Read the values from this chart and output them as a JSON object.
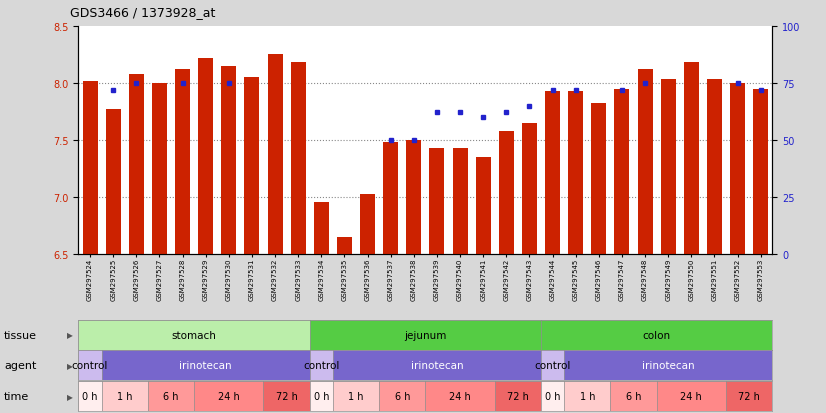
{
  "title": "GDS3466 / 1373928_at",
  "samples": [
    "GSM297524",
    "GSM297525",
    "GSM297526",
    "GSM297527",
    "GSM297528",
    "GSM297529",
    "GSM297530",
    "GSM297531",
    "GSM297532",
    "GSM297533",
    "GSM297534",
    "GSM297535",
    "GSM297536",
    "GSM297537",
    "GSM297538",
    "GSM297539",
    "GSM297540",
    "GSM297541",
    "GSM297542",
    "GSM297543",
    "GSM297544",
    "GSM297545",
    "GSM297546",
    "GSM297547",
    "GSM297548",
    "GSM297549",
    "GSM297550",
    "GSM297551",
    "GSM297552",
    "GSM297553"
  ],
  "bar_values": [
    8.02,
    7.77,
    8.08,
    8.0,
    8.12,
    8.22,
    8.15,
    8.05,
    8.25,
    8.18,
    6.95,
    6.65,
    7.02,
    7.48,
    7.5,
    7.43,
    7.43,
    7.35,
    7.58,
    7.65,
    7.93,
    7.93,
    7.82,
    7.95,
    8.12,
    8.03,
    8.18,
    8.03,
    8.0,
    7.95
  ],
  "percentile_values": [
    null,
    72,
    75,
    null,
    75,
    null,
    75,
    null,
    null,
    null,
    null,
    null,
    null,
    50,
    50,
    62,
    62,
    60,
    62,
    65,
    72,
    72,
    null,
    72,
    75,
    null,
    null,
    null,
    75,
    72
  ],
  "ylim_left": [
    6.5,
    8.5
  ],
  "ylim_right": [
    0,
    100
  ],
  "yticks_left": [
    6.5,
    7.0,
    7.5,
    8.0,
    8.5
  ],
  "yticks_right": [
    0,
    25,
    50,
    75,
    100
  ],
  "bar_color": "#cc2200",
  "dot_color": "#2222cc",
  "background_color": "#d8d8d8",
  "plot_bg_color": "#ffffff",
  "tissue_defs": [
    {
      "start": 0,
      "end": 10,
      "color": "#bbeeaa",
      "label": "stomach"
    },
    {
      "start": 10,
      "end": 20,
      "color": "#55cc44",
      "label": "jejunum"
    },
    {
      "start": 20,
      "end": 30,
      "color": "#55cc44",
      "label": "colon"
    }
  ],
  "agent_defs": [
    {
      "start": 0,
      "end": 1,
      "color": "#ccbbee",
      "label": "control"
    },
    {
      "start": 1,
      "end": 10,
      "color": "#7766cc",
      "label": "irinotecan"
    },
    {
      "start": 10,
      "end": 11,
      "color": "#ccbbee",
      "label": "control"
    },
    {
      "start": 11,
      "end": 20,
      "color": "#7766cc",
      "label": "irinotecan"
    },
    {
      "start": 20,
      "end": 21,
      "color": "#ccbbee",
      "label": "control"
    },
    {
      "start": 21,
      "end": 30,
      "color": "#7766cc",
      "label": "irinotecan"
    }
  ],
  "time_pattern": [
    {
      "start": 0,
      "end": 1,
      "color": "#ffeeee",
      "label": "0 h"
    },
    {
      "start": 1,
      "end": 3,
      "color": "#ffcccc",
      "label": "1 h"
    },
    {
      "start": 3,
      "end": 5,
      "color": "#ff9999",
      "label": "6 h"
    },
    {
      "start": 5,
      "end": 8,
      "color": "#ff8888",
      "label": "24 h"
    },
    {
      "start": 8,
      "end": 10,
      "color": "#ee6666",
      "label": "72 h"
    }
  ],
  "time_offsets": [
    0,
    10,
    20
  ],
  "grid_dotted_at": [
    7.0,
    7.5,
    8.0
  ],
  "grid_color": "#888888",
  "title_fontsize": 9,
  "tick_fontsize": 7,
  "sample_fontsize": 5,
  "row_label_fontsize": 8,
  "row_text_fontsize": 7.5
}
